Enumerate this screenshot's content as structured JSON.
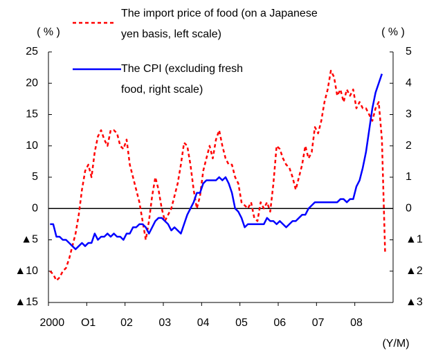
{
  "chart_data": {
    "type": "line",
    "y_unit_label": "( % )",
    "y2_unit_label": "( % )",
    "x_unit_label": "(Y/M)",
    "categories": [
      "2000",
      null,
      null,
      null,
      null,
      null,
      null,
      null,
      null,
      null,
      null,
      null,
      "O1",
      null,
      null,
      null,
      null,
      null,
      null,
      null,
      null,
      null,
      null,
      null,
      "02",
      null,
      null,
      null,
      null,
      null,
      null,
      null,
      null,
      null,
      null,
      null,
      "03",
      null,
      null,
      null,
      null,
      null,
      null,
      null,
      null,
      null,
      null,
      null,
      "04",
      null,
      null,
      null,
      null,
      null,
      null,
      null,
      null,
      null,
      null,
      null,
      "05",
      null,
      null,
      null,
      null,
      null,
      null,
      null,
      null,
      null,
      null,
      null,
      "06",
      null,
      null,
      null,
      null,
      null,
      null,
      null,
      null,
      null,
      null,
      null,
      "07",
      null,
      null,
      null,
      null,
      null,
      null,
      null,
      null,
      null,
      null,
      null,
      "08",
      null,
      null,
      null,
      null,
      null,
      null,
      null,
      null,
      null,
      null,
      null
    ],
    "series": [
      {
        "name": "The import price of food (on a Japanese yen basis, left scale)",
        "color": "#ff0000",
        "line_style": "dashed",
        "axis": "y",
        "values": [
          -10,
          -10.5,
          -11.5,
          -11,
          -10,
          -9.5,
          -8,
          -6,
          -4,
          -1,
          3,
          6,
          7,
          5,
          9,
          11.5,
          12.5,
          11,
          10,
          12.5,
          12.5,
          12,
          10,
          9.5,
          11,
          7,
          5,
          3,
          1,
          -2,
          -5,
          -2,
          2,
          5,
          3,
          0,
          -2,
          -1,
          0,
          2,
          4,
          7,
          10.5,
          10,
          7,
          3,
          0,
          2,
          6,
          8,
          10,
          8,
          11,
          12.5,
          10,
          8,
          7,
          7,
          5,
          4,
          1,
          0.5,
          0,
          1,
          -1.5,
          -2,
          1,
          0,
          1,
          -0.5,
          4,
          10,
          9.5,
          8,
          7,
          6.5,
          5,
          3,
          5,
          7,
          10,
          8,
          9,
          13,
          12,
          14,
          17,
          19,
          22,
          21,
          18,
          19,
          17,
          19,
          18,
          19,
          16,
          17,
          16,
          16,
          15,
          14,
          16,
          17,
          11,
          -7,
          null,
          null
        ]
      },
      {
        "name": "The CPI (excluding fresh food, right scale)",
        "color": "#0000ff",
        "line_style": "solid",
        "axis": "y2",
        "values": [
          -0.5,
          -0.5,
          -0.9,
          -0.9,
          -1.0,
          -1.0,
          -1.1,
          -1.2,
          -1.3,
          -1.2,
          -1.1,
          -1.2,
          -1.1,
          -1.1,
          -0.8,
          -1.0,
          -0.9,
          -0.9,
          -0.8,
          -0.9,
          -0.8,
          -0.9,
          -0.9,
          -1.0,
          -0.8,
          -0.8,
          -0.6,
          -0.6,
          -0.5,
          -0.5,
          -0.6,
          -0.8,
          -0.6,
          -0.4,
          -0.3,
          -0.3,
          -0.4,
          -0.5,
          -0.7,
          -0.6,
          -0.7,
          -0.8,
          -0.5,
          -0.2,
          0.0,
          0.2,
          0.5,
          0.5,
          0.8,
          0.9,
          0.9,
          0.9,
          0.9,
          1.0,
          0.9,
          1.0,
          0.8,
          0.5,
          0.0,
          -0.1,
          -0.3,
          -0.6,
          -0.5,
          -0.5,
          -0.5,
          -0.5,
          -0.5,
          -0.5,
          -0.3,
          -0.4,
          -0.4,
          -0.5,
          -0.4,
          -0.5,
          -0.6,
          -0.5,
          -0.4,
          -0.4,
          -0.3,
          -0.2,
          -0.2,
          0.0,
          0.1,
          0.2,
          0.2,
          0.2,
          0.2,
          0.2,
          0.2,
          0.2,
          0.2,
          0.3,
          0.3,
          0.2,
          0.3,
          0.3,
          0.7,
          0.9,
          1.3,
          1.8,
          2.5,
          3.2,
          3.7,
          4.0,
          4.3,
          null,
          null,
          null
        ]
      }
    ],
    "ylim": [
      -15,
      25
    ],
    "yticks": [
      25,
      20,
      15,
      10,
      5,
      0,
      {
        "value": -5,
        "label": "▲5"
      },
      {
        "value": -10,
        "label": "▲10"
      },
      {
        "value": -15,
        "label": "▲15"
      }
    ],
    "y2lim": [
      -3,
      5
    ],
    "y2ticks": [
      5,
      4,
      3,
      2,
      1,
      0,
      {
        "value": -1,
        "label": "▲1"
      },
      {
        "value": -2,
        "label": "▲2"
      },
      {
        "value": -3,
        "label": "▲3"
      }
    ],
    "zero_line": true
  }
}
